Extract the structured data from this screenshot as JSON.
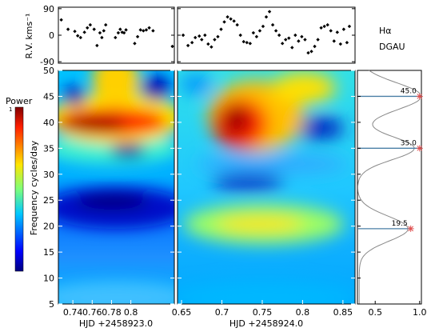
{
  "labels": {
    "rv_ylabel": "R.V. kms⁻¹",
    "freq_ylabel": "Frequency cycles/day",
    "power_title": "Power",
    "power_max": "1",
    "xlabel_left": "HJD +2458923.0",
    "xlabel_mid": "HJD +2458924.0",
    "line": "Hα",
    "star": "DGAU"
  },
  "chart_data": [
    {
      "type": "scatter",
      "panel": "rv-left",
      "ylabel": "R.V. kms⁻¹",
      "xlim": [
        0.725,
        0.845
      ],
      "ylim": [
        -95,
        95
      ],
      "yticks": [
        90,
        0,
        -90
      ],
      "grid": false,
      "series": [
        {
          "x": [
            0.728,
            0.735,
            0.742,
            0.745,
            0.748,
            0.752,
            0.755,
            0.758,
            0.762,
            0.765,
            0.768,
            0.77,
            0.772,
            0.774,
            0.784,
            0.787,
            0.789,
            0.791,
            0.793,
            0.795,
            0.804,
            0.807,
            0.81,
            0.813,
            0.816,
            0.819,
            0.823,
            0.843
          ],
          "y": [
            52,
            20,
            13,
            -2,
            -8,
            10,
            25,
            35,
            20,
            -35,
            8,
            -8,
            15,
            35,
            -8,
            8,
            20,
            10,
            8,
            18,
            -28,
            -5,
            18,
            15,
            18,
            25,
            15,
            -38
          ]
        }
      ]
    },
    {
      "type": "scatter",
      "panel": "rv-mid",
      "xlim": [
        0.645,
        0.865
      ],
      "ylim": [
        -95,
        95
      ],
      "grid": false,
      "series": [
        {
          "x": [
            0.652,
            0.658,
            0.663,
            0.667,
            0.672,
            0.675,
            0.679,
            0.683,
            0.687,
            0.691,
            0.695,
            0.699,
            0.703,
            0.707,
            0.711,
            0.715,
            0.719,
            0.723,
            0.727,
            0.731,
            0.735,
            0.739,
            0.743,
            0.747,
            0.751,
            0.755,
            0.759,
            0.763,
            0.767,
            0.771,
            0.775,
            0.779,
            0.783,
            0.787,
            0.791,
            0.795,
            0.799,
            0.803,
            0.807,
            0.811,
            0.815,
            0.819,
            0.823,
            0.827,
            0.831,
            0.835,
            0.839,
            0.843,
            0.847,
            0.851,
            0.855,
            0.858
          ],
          "y": [
            0,
            -35,
            -25,
            -8,
            -3,
            -15,
            0,
            -30,
            -40,
            -15,
            -5,
            20,
            45,
            62,
            55,
            48,
            35,
            0,
            -22,
            -25,
            -28,
            8,
            -5,
            15,
            30,
            62,
            80,
            35,
            15,
            0,
            -28,
            -15,
            -10,
            -42,
            0,
            -20,
            -5,
            -15,
            -60,
            -55,
            -38,
            -15,
            25,
            30,
            35,
            15,
            -20,
            10,
            -30,
            20,
            -25,
            30
          ]
        }
      ]
    },
    {
      "type": "heatmap",
      "panel": "periodogram-left",
      "xlabel": "HJD +2458923.0",
      "ylabel": "Frequency cycles/day",
      "xlim": [
        0.725,
        0.845
      ],
      "ylim": [
        5,
        50
      ],
      "xticks": [
        0.74,
        0.76,
        0.78,
        0.8
      ],
      "xtick_labels": [
        "0.74",
        "0.76",
        "0.78",
        "0.8"
      ],
      "yticks": [
        5,
        10,
        15,
        20,
        25,
        30,
        35,
        40,
        45,
        50
      ],
      "colormap": "jet",
      "colorbar": {
        "title": "Power",
        "max": "1",
        "placement": "left"
      },
      "features": [
        {
          "x": 0.785,
          "y": 40,
          "power": 0.95
        },
        {
          "x": 0.738,
          "y": 45,
          "power": 0.25
        },
        {
          "x": 0.832,
          "y": 45,
          "power": 0.2
        },
        {
          "x": 0.79,
          "y": 34,
          "power": 0.1
        },
        {
          "x": 0.78,
          "y": 25,
          "power": 0.08
        }
      ]
    },
    {
      "type": "heatmap",
      "panel": "periodogram-mid",
      "xlabel": "HJD +2458924.0",
      "xlim": [
        0.645,
        0.865
      ],
      "ylim": [
        5,
        50
      ],
      "xticks": [
        0.65,
        0.7,
        0.75,
        0.8,
        0.85
      ],
      "xtick_labels": [
        "0.65",
        "0.7",
        "0.75",
        "0.8",
        "0.85"
      ],
      "colormap": "jet",
      "features": [
        {
          "x": 0.72,
          "y": 40,
          "power": 0.95
        },
        {
          "x": 0.735,
          "y": 20,
          "power": 0.55
        },
        {
          "x": 0.73,
          "y": 28,
          "power": 0.05
        },
        {
          "x": 0.83,
          "y": 38,
          "power": 0.1
        }
      ]
    },
    {
      "type": "line",
      "panel": "mean-power",
      "xlim": [
        0.3,
        1.02
      ],
      "ylim": [
        5,
        50
      ],
      "xticks": [
        0.5,
        1.0
      ],
      "xtick_labels": [
        "0.5",
        "1.0"
      ],
      "peaks": [
        {
          "freq": 45.0,
          "label": "45.0",
          "power": 1.0
        },
        {
          "freq": 35.0,
          "label": "35.0",
          "power": 1.0
        },
        {
          "freq": 19.5,
          "label": "19.5",
          "power": 0.9
        }
      ]
    }
  ]
}
